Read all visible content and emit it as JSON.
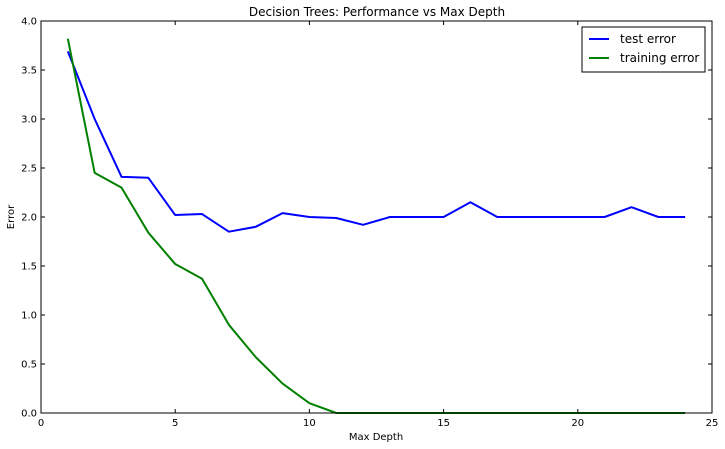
{
  "chart_data": {
    "type": "line",
    "title": "Decision Trees: Performance vs Max Depth",
    "xlabel": "Max Depth",
    "ylabel": "Error",
    "xlim": [
      0,
      25
    ],
    "ylim": [
      0.0,
      4.0
    ],
    "xticks": [
      0,
      5,
      10,
      15,
      20,
      25
    ],
    "yticks": [
      0.0,
      0.5,
      1.0,
      1.5,
      2.0,
      2.5,
      3.0,
      3.5,
      4.0
    ],
    "xtick_labels": [
      "0",
      "5",
      "10",
      "15",
      "20",
      "25"
    ],
    "ytick_labels": [
      "0.0",
      "0.5",
      "1.0",
      "1.5",
      "2.0",
      "2.5",
      "3.0",
      "3.5",
      "4.0"
    ],
    "grid": false,
    "legend_position": "top-right",
    "x": [
      1,
      2,
      3,
      4,
      5,
      6,
      7,
      8,
      9,
      10,
      11,
      12,
      13,
      14,
      15,
      16,
      17,
      18,
      19,
      20,
      21,
      22,
      23,
      24
    ],
    "series": [
      {
        "name": "test error",
        "color": "#0000ff",
        "values": [
          3.69,
          3.0,
          2.41,
          2.4,
          2.02,
          2.03,
          1.85,
          1.9,
          2.04,
          2.0,
          1.99,
          1.92,
          2.0,
          2.0,
          2.0,
          2.15,
          2.0,
          2.0,
          2.0,
          2.0,
          2.0,
          2.1,
          2.0,
          2.0
        ]
      },
      {
        "name": "training error",
        "color": "#008000",
        "values": [
          3.82,
          2.45,
          2.3,
          1.84,
          1.52,
          1.37,
          0.9,
          0.57,
          0.3,
          0.1,
          0.0,
          0.0,
          0.0,
          0.0,
          0.0,
          0.0,
          0.0,
          0.0,
          0.0,
          0.0,
          0.0,
          0.0,
          0.0,
          0.0
        ]
      }
    ]
  }
}
